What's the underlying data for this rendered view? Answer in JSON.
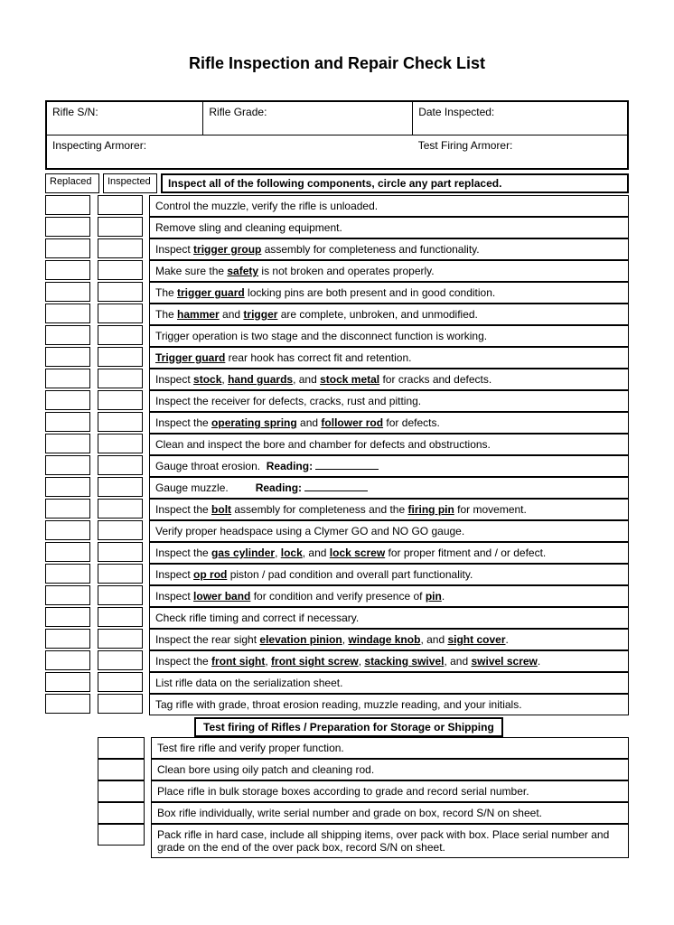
{
  "title": "Rifle Inspection and Repair Check List",
  "header": {
    "sn_label": "Rifle S/N:",
    "grade_label": "Rifle Grade:",
    "date_label": "Date Inspected:",
    "inspector_label": "Inspecting Armorer:",
    "testfire_label": "Test Firing Armorer:"
  },
  "columns": {
    "replaced": "Replaced",
    "inspected": "Inspected"
  },
  "instruction": "Inspect all of the following components, circle any part replaced.",
  "items": [
    {
      "text": "Control the muzzle, verify the rifle is unloaded.",
      "boxes": 2
    },
    {
      "text": "Remove sling and cleaning equipment.",
      "boxes": 2
    },
    {
      "html": "Inspect <span class='ub'>trigger group</span> assembly for completeness and functionality.",
      "boxes": 2
    },
    {
      "html": "Make sure the <span class='ub'>safety</span> is not broken and operates properly.",
      "boxes": 2
    },
    {
      "html": "The <span class='ub'>trigger guard</span> locking pins are both present and in good condition.",
      "boxes": 2
    },
    {
      "html": "The <span class='ub'>hammer</span> and <span class='ub'>trigger</span> are complete, unbroken, and unmodified.",
      "boxes": 2
    },
    {
      "text": "Trigger operation is two stage and the disconnect function is working.",
      "boxes": 2
    },
    {
      "html": "<span class='ub'>Trigger guard</span> rear hook has correct fit and retention.",
      "boxes": 2
    },
    {
      "html": "Inspect <span class='ub'>stock</span>, <span class='ub'>hand guards</span>, and <span class='ub'>stock metal</span> for cracks and defects.",
      "boxes": 2
    },
    {
      "text": "Inspect the receiver for defects, cracks, rust and pitting.",
      "boxes": 2
    },
    {
      "html": "Inspect the <span class='ub'>operating spring</span> and <span class='ub'>follower rod</span> for defects.",
      "boxes": 2
    },
    {
      "text": "Clean and inspect the bore and chamber for defects and obstructions.",
      "boxes": 2
    },
    {
      "html": "Gauge throat erosion.&nbsp;&nbsp;<b>Reading:</b> <span class='fill'></span>",
      "boxes": 2
    },
    {
      "html": "Gauge muzzle.&nbsp;&nbsp;&nbsp;&nbsp;&nbsp;&nbsp;&nbsp;&nbsp;&nbsp;<b>Reading:</b> <span class='fill'></span>",
      "boxes": 2
    },
    {
      "html": "Inspect the <span class='ub'>bolt</span> assembly for completeness and the <span class='ub'>firing pin</span> for movement.",
      "boxes": 2
    },
    {
      "text": "Verify proper headspace using a Clymer GO and NO GO gauge.",
      "boxes": 2
    },
    {
      "html": "Inspect the <span class='ub'>gas cylinder</span>, <span class='ub'>lock</span>, and <span class='ub'>lock screw</span> for proper fitment and / or defect.",
      "boxes": 2
    },
    {
      "html": "Inspect <span class='ub'>op rod</span> piston / pad condition and overall part functionality.",
      "boxes": 2
    },
    {
      "html": "Inspect <span class='ub'>lower band</span> for condition and verify presence of <span class='ub'>pin</span>.",
      "boxes": 2
    },
    {
      "text": "Check rifle timing and correct if necessary.",
      "boxes": 2
    },
    {
      "html": "Inspect the rear sight <span class='ub'>elevation pinion</span>, <span class='ub'>windage knob</span>, and <span class='ub'>sight cover</span>.",
      "boxes": 2
    },
    {
      "html": "Inspect the <span class='ub'>front sight</span>, <span class='ub'>front sight screw</span>, <span class='ub'>stacking swivel</span>, and <span class='ub'>swivel screw</span>.",
      "boxes": 2
    },
    {
      "text": "List rifle data on the serialization sheet.",
      "boxes": 2
    },
    {
      "text": "Tag rifle with grade, throat erosion reading, muzzle reading, and your initials.",
      "boxes": 2
    }
  ],
  "section2_title": "Test firing of Rifles / Preparation for Storage or Shipping",
  "section2_items": [
    {
      "text": "Test fire rifle and verify proper function."
    },
    {
      "text": "Clean bore using oily patch and cleaning rod."
    },
    {
      "text": "Place rifle in bulk storage boxes according to grade and record serial number."
    },
    {
      "text": "Box rifle individually, write serial number and grade on box, record S/N on sheet."
    },
    {
      "text": "Pack rifle in hard case, include all shipping items, over pack with box.  Place serial number and grade on the end of the over pack box, record S/N on sheet."
    }
  ]
}
